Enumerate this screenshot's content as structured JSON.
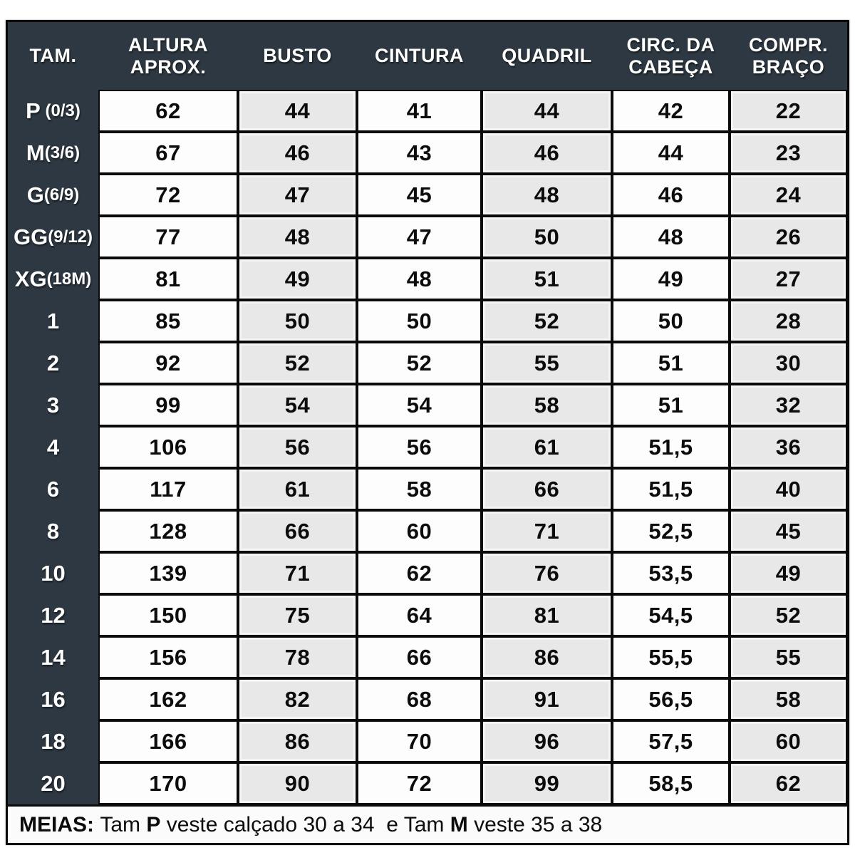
{
  "colors": {
    "table_dark": "#2e3842",
    "cell_white": "#fdfdfd",
    "cell_gray": "#e8e8e8",
    "border_black": "#0a0a0a",
    "header_text": "#ffffff"
  },
  "chart_data": {
    "type": "table",
    "title": "",
    "columns": [
      "TAM.",
      "ALTURA APROX.",
      "BUSTO",
      "CINTURA",
      "QUADRIL",
      "CIRC. DA CABEÇA",
      "COMPR. BRAÇO"
    ],
    "rows": [
      {
        "size_main": "P",
        "size_sub": " (0/3)",
        "values": [
          "62",
          "44",
          "41",
          "44",
          "42",
          "22"
        ]
      },
      {
        "size_main": "M",
        "size_sub": "(3/6)",
        "values": [
          "67",
          "46",
          "43",
          "46",
          "44",
          "23"
        ]
      },
      {
        "size_main": "G",
        "size_sub": "(6/9)",
        "values": [
          "72",
          "47",
          "45",
          "48",
          "46",
          "24"
        ]
      },
      {
        "size_main": "GG",
        "size_sub": "(9/12)",
        "values": [
          "77",
          "48",
          "47",
          "50",
          "48",
          "26"
        ]
      },
      {
        "size_main": "XG",
        "size_sub": "(18M)",
        "values": [
          "81",
          "49",
          "48",
          "51",
          "49",
          "27"
        ]
      },
      {
        "size_main": "1",
        "size_sub": "",
        "values": [
          "85",
          "50",
          "50",
          "52",
          "50",
          "28"
        ]
      },
      {
        "size_main": "2",
        "size_sub": "",
        "values": [
          "92",
          "52",
          "52",
          "55",
          "51",
          "30"
        ]
      },
      {
        "size_main": "3",
        "size_sub": "",
        "values": [
          "99",
          "54",
          "54",
          "58",
          "51",
          "32"
        ]
      },
      {
        "size_main": "4",
        "size_sub": "",
        "values": [
          "106",
          "56",
          "56",
          "61",
          "51,5",
          "36"
        ]
      },
      {
        "size_main": "6",
        "size_sub": "",
        "values": [
          "117",
          "61",
          "58",
          "66",
          "51,5",
          "40"
        ]
      },
      {
        "size_main": "8",
        "size_sub": "",
        "values": [
          "128",
          "66",
          "60",
          "71",
          "52,5",
          "45"
        ]
      },
      {
        "size_main": "10",
        "size_sub": "",
        "values": [
          "139",
          "71",
          "62",
          "76",
          "53,5",
          "49"
        ]
      },
      {
        "size_main": "12",
        "size_sub": "",
        "values": [
          "150",
          "75",
          "64",
          "81",
          "54,5",
          "52"
        ]
      },
      {
        "size_main": "14",
        "size_sub": "",
        "values": [
          "156",
          "78",
          "66",
          "86",
          "55,5",
          "55"
        ]
      },
      {
        "size_main": "16",
        "size_sub": "",
        "values": [
          "162",
          "82",
          "68",
          "91",
          "56,5",
          "58"
        ]
      },
      {
        "size_main": "18",
        "size_sub": "",
        "values": [
          "166",
          "86",
          "70",
          "96",
          "57,5",
          "60"
        ]
      },
      {
        "size_main": "20",
        "size_sub": "",
        "values": [
          "170",
          "90",
          "72",
          "99",
          "58,5",
          "62"
        ]
      }
    ]
  },
  "footer": {
    "label": "MEIAS:",
    "segments": [
      {
        "text": " Tam ",
        "bold": false
      },
      {
        "text": "P",
        "bold": true
      },
      {
        "text": " veste calçado 30 a 34  e Tam ",
        "bold": false
      },
      {
        "text": "M",
        "bold": true
      },
      {
        "text": " veste 35 a 38",
        "bold": false
      }
    ]
  }
}
